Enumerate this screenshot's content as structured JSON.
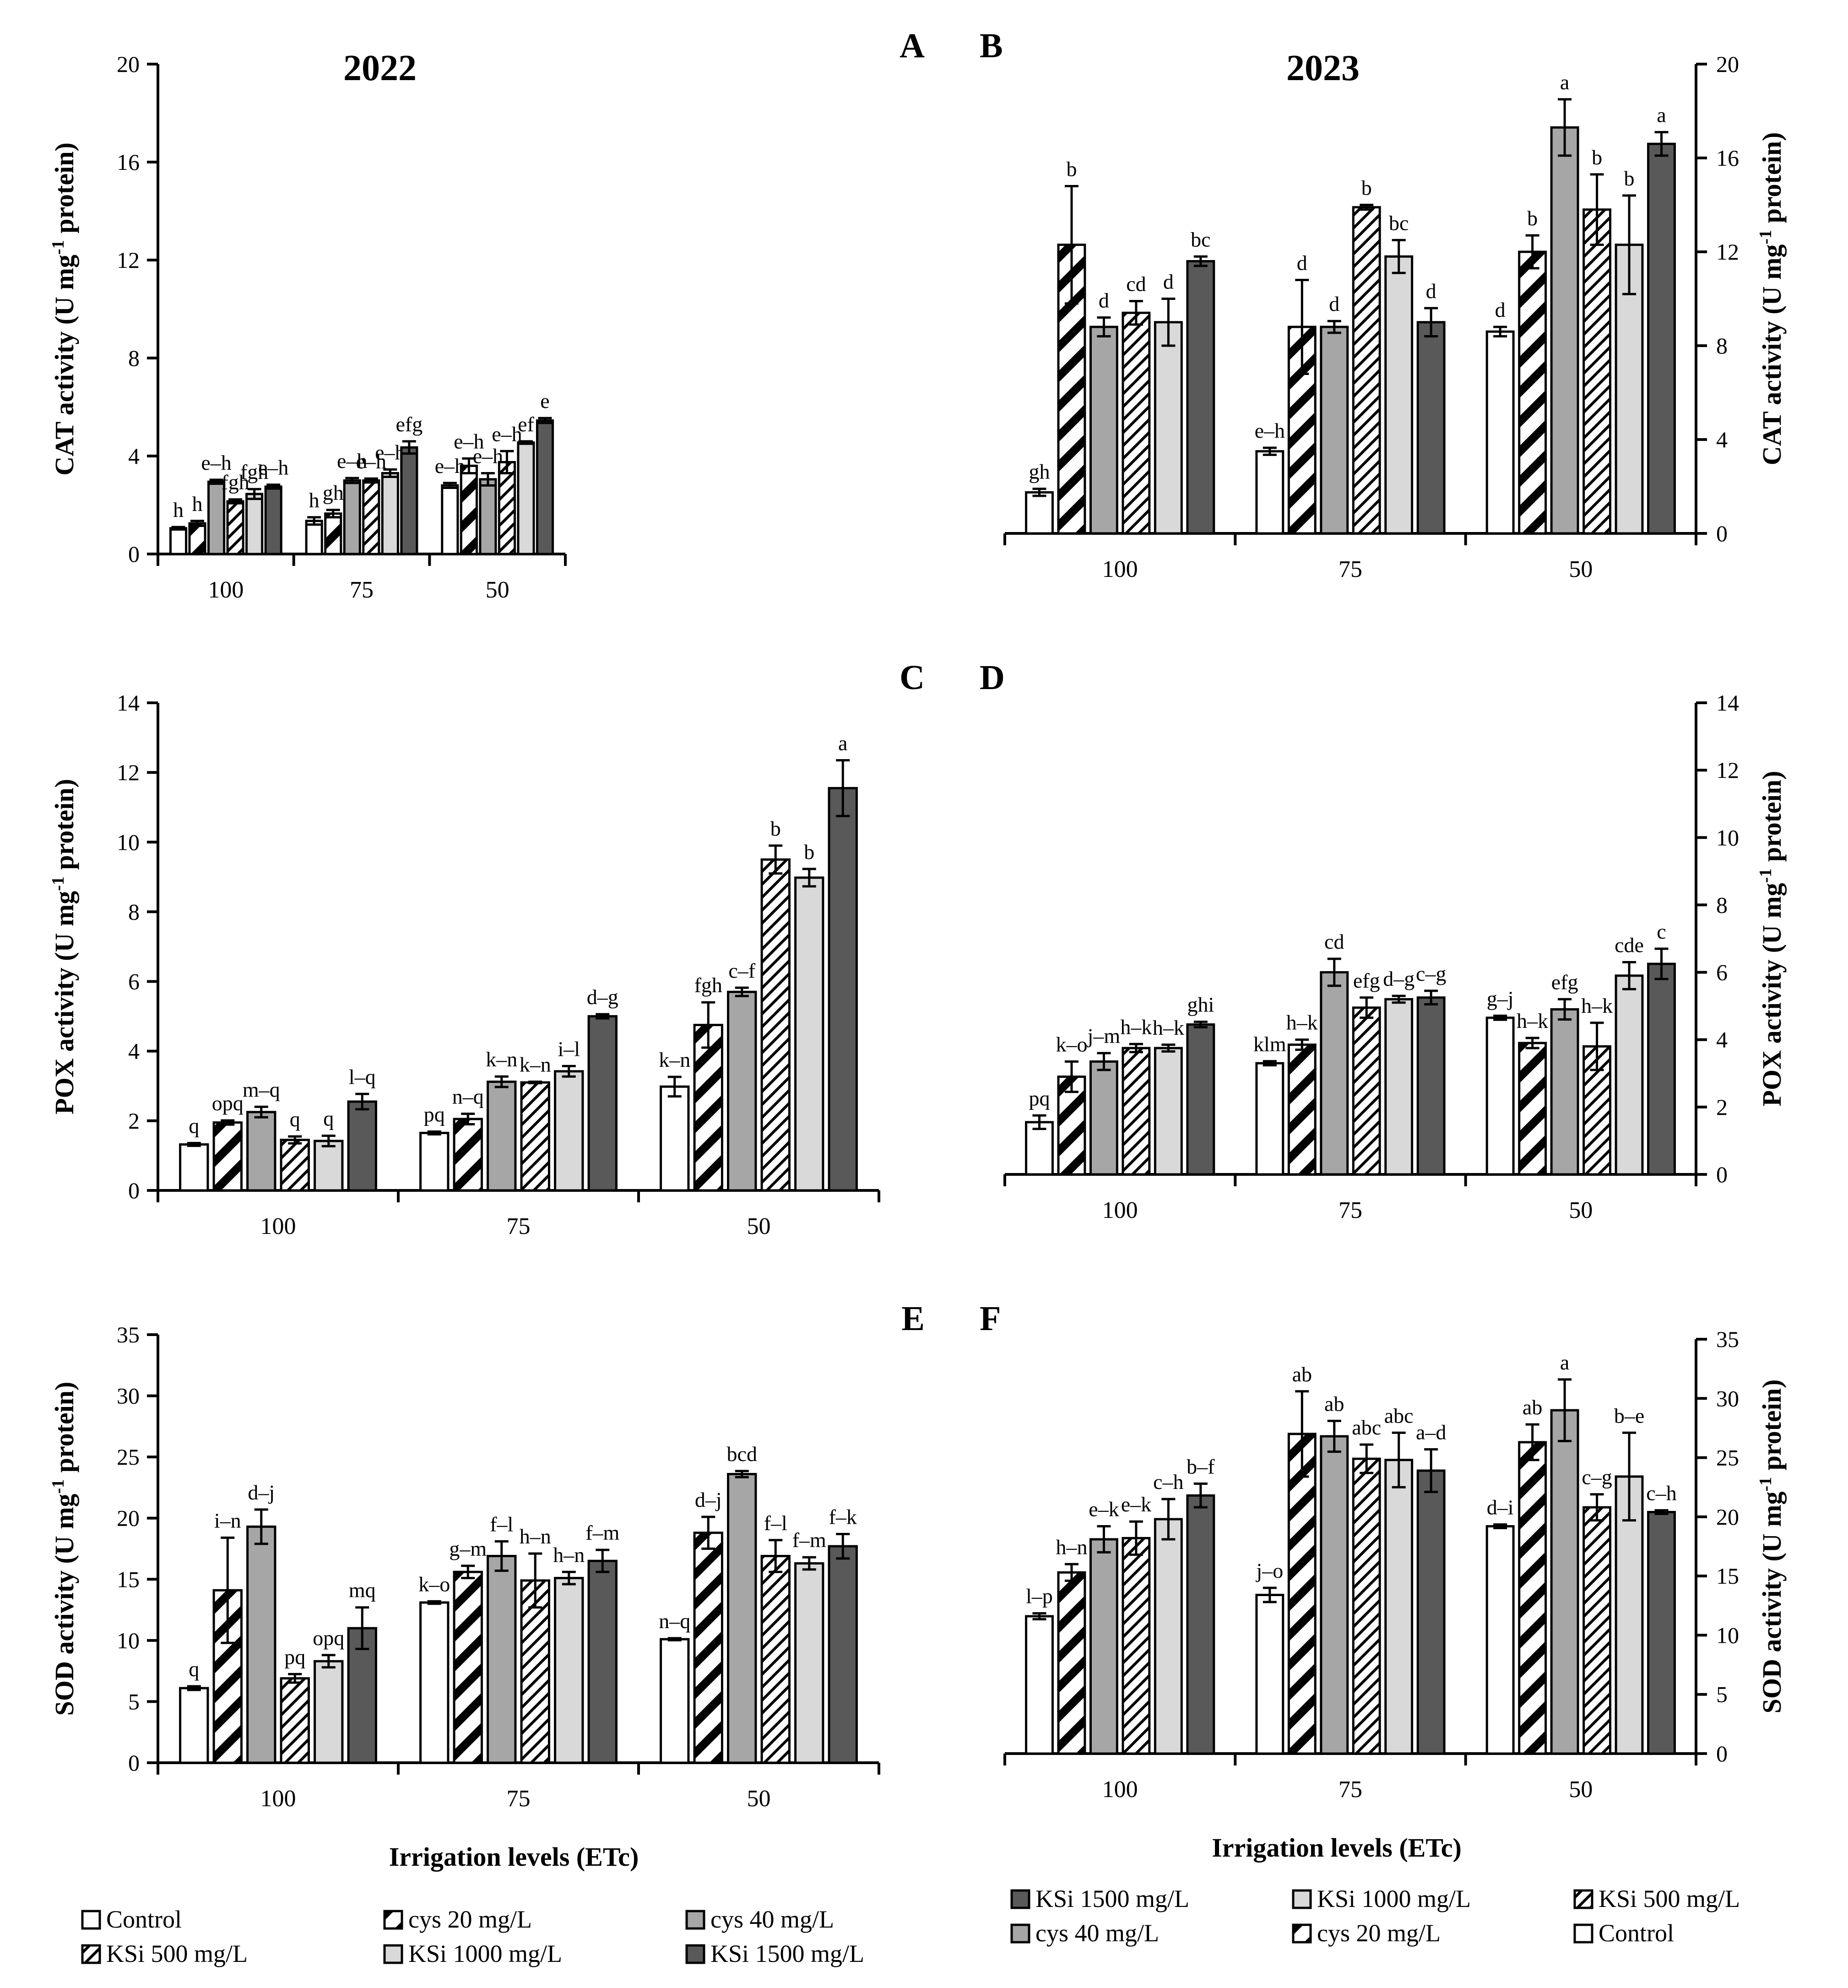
{
  "chart_data": [
    {
      "panel": "A",
      "type": "bar",
      "title": "2022",
      "ylabel": "CAT activity (U mg⁻¹ protein)",
      "xlabel": "",
      "ylim": [
        0,
        20
      ],
      "yticks": [
        0,
        4,
        8,
        12,
        16,
        20
      ],
      "axis_side": "left",
      "categories": [
        "100",
        "75",
        "50"
      ],
      "series": [
        {
          "name": "Control",
          "values": [
            1.05,
            1.35,
            2.8
          ],
          "errors": [
            0.05,
            0.15,
            0.1
          ],
          "labels": [
            "h",
            "h",
            "e–h"
          ]
        },
        {
          "name": "cys 20 mg/L",
          "values": [
            1.25,
            1.65,
            3.6
          ],
          "errors": [
            0.1,
            0.15,
            0.3
          ],
          "labels": [
            "h",
            "gh",
            "e–h"
          ]
        },
        {
          "name": "cys 40 mg/L",
          "values": [
            2.95,
            3.0,
            3.05
          ],
          "errors": [
            0.08,
            0.1,
            0.25
          ],
          "labels": [
            "e–h",
            "e–h",
            "e–h"
          ]
        },
        {
          "name": "KSi 500 mg/L",
          "values": [
            2.15,
            3.0,
            3.75
          ],
          "errors": [
            0.08,
            0.08,
            0.45
          ],
          "labels": [
            "fgh",
            "e–h",
            "e–h"
          ]
        },
        {
          "name": "KSi 1000 mg/L",
          "values": [
            2.45,
            3.3,
            4.55
          ],
          "errors": [
            0.2,
            0.15,
            0.05
          ],
          "labels": [
            "fgh",
            "e–h",
            "ef"
          ]
        },
        {
          "name": "KSi 1500 mg/L",
          "values": [
            2.75,
            4.35,
            5.45
          ],
          "errors": [
            0.08,
            0.25,
            0.1
          ],
          "labels": [
            "e–h",
            "efg",
            "e"
          ]
        }
      ]
    },
    {
      "panel": "B",
      "type": "bar",
      "title": "2023",
      "ylabel": "CAT activity (U mg⁻¹ protein)",
      "xlabel": "",
      "ylim": [
        0,
        20
      ],
      "yticks": [
        0,
        4,
        8,
        12,
        16,
        20
      ],
      "axis_side": "right",
      "categories": [
        "100",
        "75",
        "50"
      ],
      "series": [
        {
          "name": "Control",
          "values": [
            1.75,
            3.5,
            8.6
          ],
          "errors": [
            0.15,
            0.15,
            0.2
          ],
          "labels": [
            "gh",
            "e–h",
            "d"
          ]
        },
        {
          "name": "cys 20 mg/L",
          "values": [
            12.3,
            8.8,
            12.0
          ],
          "errors": [
            2.5,
            2.0,
            0.7
          ],
          "labels": [
            "b",
            "d",
            "b"
          ]
        },
        {
          "name": "cys 40 mg/L",
          "values": [
            8.8,
            8.8,
            17.3
          ],
          "errors": [
            0.4,
            0.25,
            1.2
          ],
          "labels": [
            "d",
            "d",
            "a"
          ]
        },
        {
          "name": "KSi 500 mg/L",
          "values": [
            9.4,
            13.9,
            13.8
          ],
          "errors": [
            0.5,
            0.1,
            1.5
          ],
          "labels": [
            "cd",
            "b",
            "b"
          ]
        },
        {
          "name": "KSi 1000 mg/L",
          "values": [
            9.0,
            11.8,
            12.3
          ],
          "errors": [
            1.0,
            0.7,
            2.1
          ],
          "labels": [
            "d",
            "bc",
            "b"
          ]
        },
        {
          "name": "KSi 1500 mg/L",
          "values": [
            11.6,
            9.0,
            16.6
          ],
          "errors": [
            0.2,
            0.6,
            0.5
          ],
          "labels": [
            "bc",
            "d",
            "a"
          ]
        }
      ]
    },
    {
      "panel": "C",
      "type": "bar",
      "title": "",
      "ylabel": "POX activity (U mg⁻¹ protein)",
      "xlabel": "",
      "ylim": [
        0,
        14
      ],
      "yticks": [
        0,
        2,
        4,
        6,
        8,
        10,
        12,
        14
      ],
      "axis_side": "left",
      "categories": [
        "100",
        "75",
        "50"
      ],
      "series": [
        {
          "name": "Control",
          "values": [
            1.32,
            1.65,
            2.98
          ],
          "errors": [
            0.04,
            0.04,
            0.28
          ],
          "labels": [
            "q",
            "pq",
            "k–n"
          ]
        },
        {
          "name": "cys 20 mg/L",
          "values": [
            1.95,
            2.05,
            4.75
          ],
          "errors": [
            0.06,
            0.15,
            0.65
          ],
          "labels": [
            "opq",
            "n–q",
            "fgh"
          ]
        },
        {
          "name": "cys 40 mg/L",
          "values": [
            2.25,
            3.12,
            5.7
          ],
          "errors": [
            0.15,
            0.15,
            0.12
          ],
          "labels": [
            "m–q",
            "k–n",
            "c–f"
          ]
        },
        {
          "name": "KSi 500 mg/L",
          "values": [
            1.45,
            3.1,
            9.5
          ],
          "errors": [
            0.1,
            0.02,
            0.4
          ],
          "labels": [
            "q",
            "k–n",
            "b"
          ]
        },
        {
          "name": "KSi 1000 mg/L",
          "values": [
            1.42,
            3.42,
            8.98
          ],
          "errors": [
            0.15,
            0.15,
            0.25
          ],
          "labels": [
            "q",
            "i–l",
            "b"
          ]
        },
        {
          "name": "KSi 1500 mg/L",
          "values": [
            2.55,
            5.0,
            11.55
          ],
          "errors": [
            0.22,
            0.06,
            0.8
          ],
          "labels": [
            "l–q",
            "d–g",
            "a"
          ]
        }
      ]
    },
    {
      "panel": "D",
      "type": "bar",
      "title": "",
      "ylabel": "POX activity (U mg⁻¹ protein)",
      "xlabel": "",
      "ylim": [
        0,
        14
      ],
      "yticks": [
        0,
        2,
        4,
        6,
        8,
        10,
        12,
        14
      ],
      "axis_side": "right",
      "categories": [
        "100",
        "75",
        "50"
      ],
      "series": [
        {
          "name": "Control",
          "values": [
            1.55,
            3.3,
            4.65
          ],
          "errors": [
            0.2,
            0.06,
            0.06
          ],
          "labels": [
            "pq",
            "klm",
            "g–j"
          ]
        },
        {
          "name": "cys 20 mg/L",
          "values": [
            2.9,
            3.85,
            3.9
          ],
          "errors": [
            0.45,
            0.15,
            0.15
          ],
          "labels": [
            "k–o",
            "h–k",
            "h–k"
          ]
        },
        {
          "name": "cys 40 mg/L",
          "values": [
            3.35,
            6.0,
            4.9
          ],
          "errors": [
            0.25,
            0.4,
            0.3
          ],
          "labels": [
            "j–m",
            "cd",
            "efg"
          ]
        },
        {
          "name": "KSi 500 mg/L",
          "values": [
            3.75,
            4.95,
            3.8
          ],
          "errors": [
            0.12,
            0.3,
            0.7
          ],
          "labels": [
            "h–k",
            "efg",
            "h–k"
          ]
        },
        {
          "name": "KSi 1000 mg/L",
          "values": [
            3.75,
            5.2,
            5.9
          ],
          "errors": [
            0.1,
            0.1,
            0.4
          ],
          "labels": [
            "h–k",
            "d–g",
            "cde"
          ]
        },
        {
          "name": "KSi 1500 mg/L",
          "values": [
            4.45,
            5.25,
            6.25
          ],
          "errors": [
            0.08,
            0.2,
            0.45
          ],
          "labels": [
            "ghi",
            "c–g",
            "c"
          ]
        }
      ]
    },
    {
      "panel": "E",
      "type": "bar",
      "title": "",
      "ylabel": "SOD activity (U mg⁻¹ protein)",
      "xlabel": "Irrigation levels (ETc)",
      "ylim": [
        0,
        35
      ],
      "yticks": [
        0,
        5,
        10,
        15,
        20,
        25,
        30,
        35
      ],
      "axis_side": "left",
      "categories": [
        "100",
        "75",
        "50"
      ],
      "series": [
        {
          "name": "Control",
          "values": [
            6.1,
            13.1,
            10.1
          ],
          "errors": [
            0.15,
            0.1,
            0.08
          ],
          "labels": [
            "q",
            "k–o",
            "n–q"
          ]
        },
        {
          "name": "cys 20 mg/L",
          "values": [
            14.1,
            15.6,
            18.8
          ],
          "errors": [
            4.3,
            0.5,
            1.3
          ],
          "labels": [
            "i–n",
            "g–m",
            "d–j"
          ]
        },
        {
          "name": "cys 40 mg/L",
          "values": [
            19.3,
            16.9,
            23.6
          ],
          "errors": [
            1.4,
            1.2,
            0.25
          ],
          "labels": [
            "d–j",
            "f–l",
            "bcd"
          ]
        },
        {
          "name": "KSi 500 mg/L",
          "values": [
            6.9,
            14.9,
            16.9
          ],
          "errors": [
            0.35,
            2.2,
            1.3
          ],
          "labels": [
            "pq",
            "h–n",
            "f–l"
          ]
        },
        {
          "name": "KSi 1000 mg/L",
          "values": [
            8.3,
            15.1,
            16.3
          ],
          "errors": [
            0.5,
            0.5,
            0.5
          ],
          "labels": [
            "opq",
            "h–n",
            "f–m"
          ]
        },
        {
          "name": "KSi 1500 mg/L",
          "values": [
            11.0,
            16.5,
            17.7
          ],
          "errors": [
            1.7,
            0.9,
            1.0
          ],
          "labels": [
            "mq",
            "f–m",
            "f–k"
          ]
        }
      ]
    },
    {
      "panel": "F",
      "type": "bar",
      "title": "",
      "ylabel": "SOD activity (U mg⁻¹ protein)",
      "xlabel": "Irrigation levels (ETc)",
      "ylim": [
        0,
        35
      ],
      "yticks": [
        0,
        5,
        10,
        15,
        20,
        25,
        30,
        35
      ],
      "axis_side": "right",
      "categories": [
        "100",
        "75",
        "50"
      ],
      "series": [
        {
          "name": "Control",
          "values": [
            11.6,
            13.4,
            19.2
          ],
          "errors": [
            0.25,
            0.6,
            0.15
          ],
          "labels": [
            "l–p",
            "j–o",
            "d–i"
          ]
        },
        {
          "name": "cys 20 mg/L",
          "values": [
            15.3,
            27.0,
            26.3
          ],
          "errors": [
            0.7,
            3.6,
            1.5
          ],
          "labels": [
            "h–n",
            "ab",
            "ab"
          ]
        },
        {
          "name": "cys 40 mg/L",
          "values": [
            18.1,
            26.8,
            29.0
          ],
          "errors": [
            1.1,
            1.3,
            2.6
          ],
          "labels": [
            "e–k",
            "ab",
            "a"
          ]
        },
        {
          "name": "KSi 500 mg/L",
          "values": [
            18.2,
            24.9,
            20.8
          ],
          "errors": [
            1.4,
            1.2,
            1.1
          ],
          "labels": [
            "e–k",
            "abc",
            "c–g"
          ]
        },
        {
          "name": "KSi 1000 mg/L",
          "values": [
            19.8,
            24.8,
            23.4
          ],
          "errors": [
            1.7,
            2.3,
            3.7
          ],
          "labels": [
            "c–h",
            "abc",
            "b–e"
          ]
        },
        {
          "name": "KSi 1500 mg/L",
          "values": [
            21.8,
            23.9,
            20.4
          ],
          "errors": [
            1.0,
            1.8,
            0.15
          ],
          "labels": [
            "b–f",
            "a–d",
            "c–h"
          ]
        }
      ]
    }
  ],
  "legend_left": [
    "Control",
    "cys 20 mg/L",
    "cys 40 mg/L",
    "KSi 500 mg/L",
    "KSi 1000 mg/L",
    "KSi 1500 mg/L"
  ],
  "legend_right": [
    "KSi 1500 mg/L",
    "KSi 1000 mg/L",
    "KSi 500 mg/L",
    "cys 40 mg/L",
    "cys 20 mg/L",
    "Control"
  ],
  "series_styles": {
    "Control": {
      "fill": "#ffffff",
      "pattern": "none"
    },
    "cys 20 mg/L": {
      "fill": "#ffffff",
      "pattern": "wide-diagonal"
    },
    "cys 40 mg/L": {
      "fill": "#a6a6a6",
      "pattern": "none"
    },
    "KSi 500 mg/L": {
      "fill": "#ffffff",
      "pattern": "fine-diagonal"
    },
    "KSi 1000 mg/L": {
      "fill": "#d9d9d9",
      "pattern": "none"
    },
    "KSi 1500 mg/L": {
      "fill": "#595959",
      "pattern": "none"
    }
  }
}
